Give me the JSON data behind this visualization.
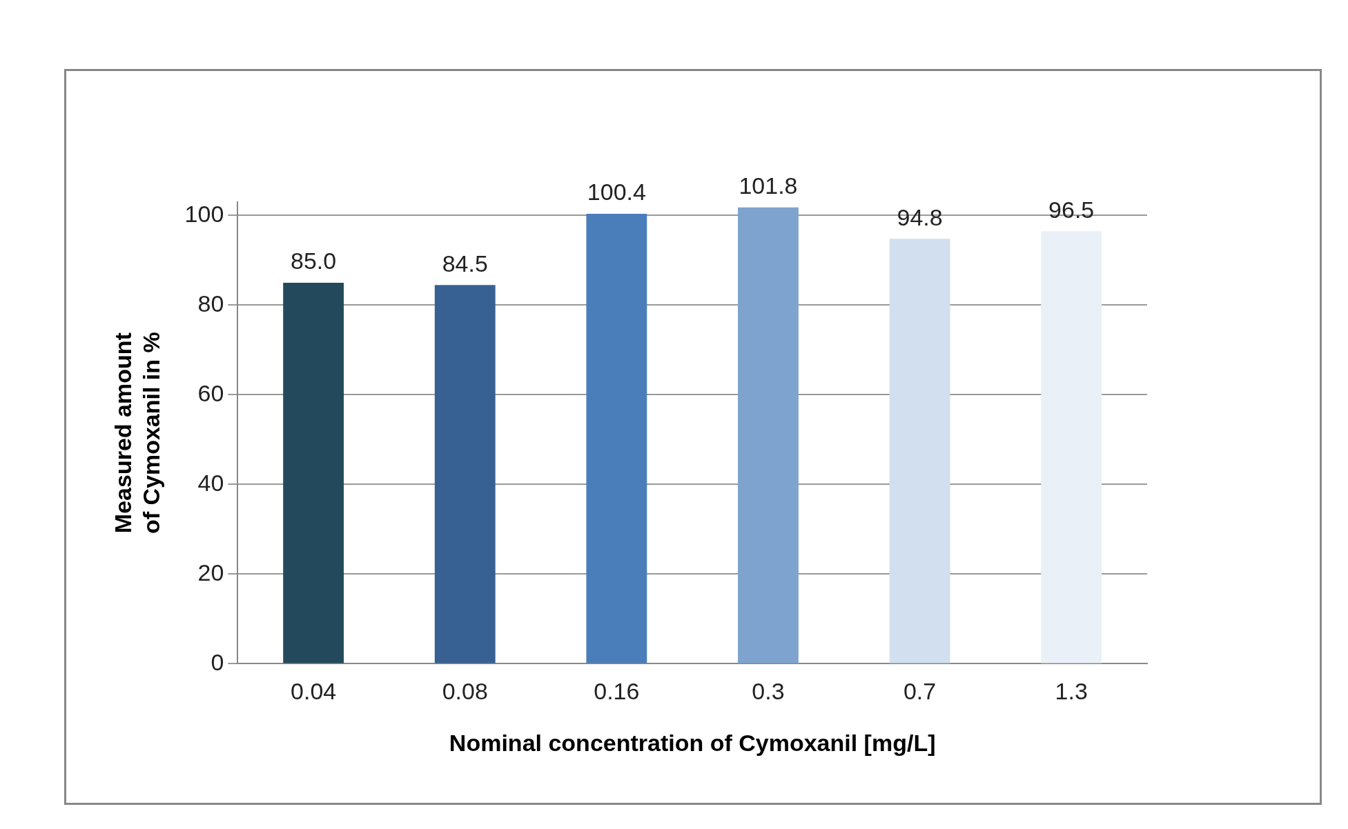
{
  "chart_data": {
    "type": "bar",
    "xlabel": "Nominal concentration of Cymoxanil [mg/L]",
    "ylabel": "Measured amount\nof Cymoxanil in %",
    "categories": [
      "0.04",
      "0.08",
      "0.16",
      "0.3",
      "0.7",
      "1.3"
    ],
    "values": [
      85.0,
      84.5,
      100.4,
      101.8,
      94.8,
      96.5
    ],
    "value_labels": [
      "85.0",
      "84.5",
      "100.4",
      "101.8",
      "94.8",
      "96.5"
    ],
    "colors": [
      "#234a5c",
      "#376192",
      "#4a7ebb",
      "#7ea3cf",
      "#d2dfee",
      "#eaf0f8"
    ],
    "ylim": [
      0,
      103
    ],
    "yticks": [
      0,
      20,
      40,
      60,
      80,
      100
    ],
    "grid": "y"
  }
}
